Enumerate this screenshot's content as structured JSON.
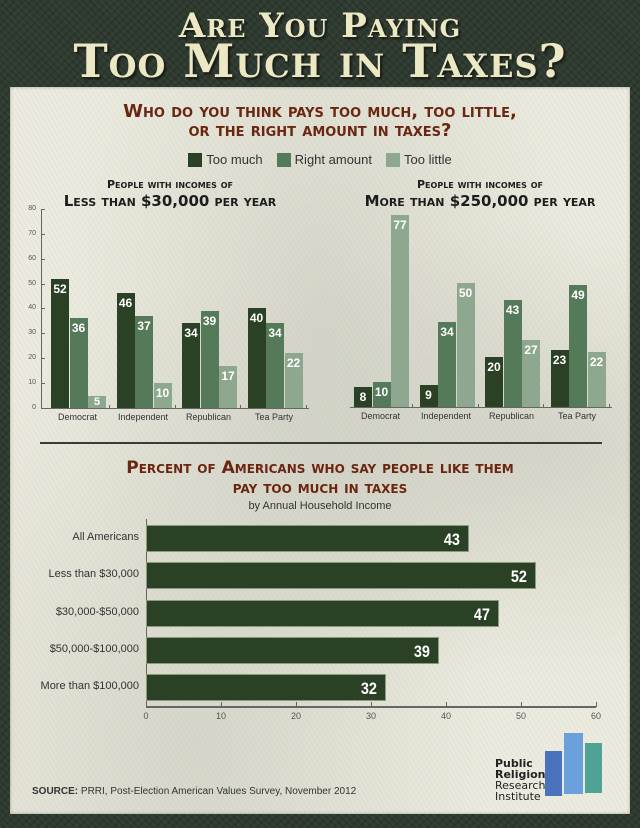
{
  "header": {
    "title_line1": "Are You Paying",
    "title_line2": "Too Much in Taxes?"
  },
  "section1": {
    "heading_line1": "Who do you think pays too much, too little,",
    "heading_line2": "or the right amount in taxes?",
    "legend": [
      {
        "label": "Too much",
        "color": "#2a4126"
      },
      {
        "label": "Right amount",
        "color": "#557a5a"
      },
      {
        "label": "Too little",
        "color": "#8ea88f"
      }
    ],
    "left_subhead_line1": "People with incomes of",
    "left_subhead_line2": "Less than $30,000 per year",
    "right_subhead_line1": "People with incomes of",
    "right_subhead_line2": "More than $250,000 per year",
    "yticks": [
      "0",
      "10",
      "20",
      "30",
      "40",
      "50",
      "60",
      "70",
      "80"
    ]
  },
  "section2": {
    "heading_line1": "Percent of Americans who say people like them",
    "heading_line2": "pay too much in taxes",
    "subtitle": "by Annual Household Income",
    "xticks": [
      "0",
      "10",
      "20",
      "30",
      "40",
      "50",
      "60"
    ]
  },
  "footer": {
    "source_label": "SOURCE:",
    "source_text": "PRRI, Post-Election American Values Survey, November 2012",
    "logo_line1": "Public",
    "logo_line2": "Religion",
    "logo_line3": "Research",
    "logo_line4": "Institute",
    "logo_colors": [
      "#4a72bd",
      "#6aa0dc",
      "#4fa394"
    ]
  },
  "chart_data": [
    {
      "type": "bar",
      "title": "People with incomes of Less than $30,000 per year",
      "categories": [
        "Democrat",
        "Independent",
        "Republican",
        "Tea Party"
      ],
      "series": [
        {
          "name": "Too much",
          "values": [
            52,
            46,
            34,
            40
          ]
        },
        {
          "name": "Right amount",
          "values": [
            36,
            37,
            39,
            34
          ]
        },
        {
          "name": "Too little",
          "values": [
            5,
            10,
            17,
            22
          ]
        }
      ],
      "xlabel": "",
      "ylabel": "",
      "ylim": [
        0,
        80
      ],
      "yticks": [
        0,
        10,
        20,
        30,
        40,
        50,
        60,
        70,
        80
      ],
      "legend_position": "top"
    },
    {
      "type": "bar",
      "title": "People with incomes of More than $250,000 per year",
      "categories": [
        "Democrat",
        "Independent",
        "Republican",
        "Tea Party"
      ],
      "series": [
        {
          "name": "Too much",
          "values": [
            8,
            9,
            20,
            23
          ]
        },
        {
          "name": "Right amount",
          "values": [
            10,
            34,
            43,
            49
          ]
        },
        {
          "name": "Too little",
          "values": [
            77,
            50,
            27,
            22
          ]
        }
      ],
      "xlabel": "",
      "ylabel": "",
      "ylim": [
        0,
        80
      ],
      "legend_position": "top"
    },
    {
      "type": "bar",
      "orientation": "horizontal",
      "title": "Percent of Americans who say people like them pay too much in taxes",
      "subtitle": "by Annual Household Income",
      "categories": [
        "All Americans",
        "Less than $30,000",
        "$30,000-$50,000",
        "$50,000-$100,000",
        "More than $100,000"
      ],
      "values": [
        43,
        52,
        47,
        39,
        32
      ],
      "xlim": [
        0,
        60
      ],
      "xticks": [
        0,
        10,
        20,
        30,
        40,
        50,
        60
      ]
    }
  ]
}
